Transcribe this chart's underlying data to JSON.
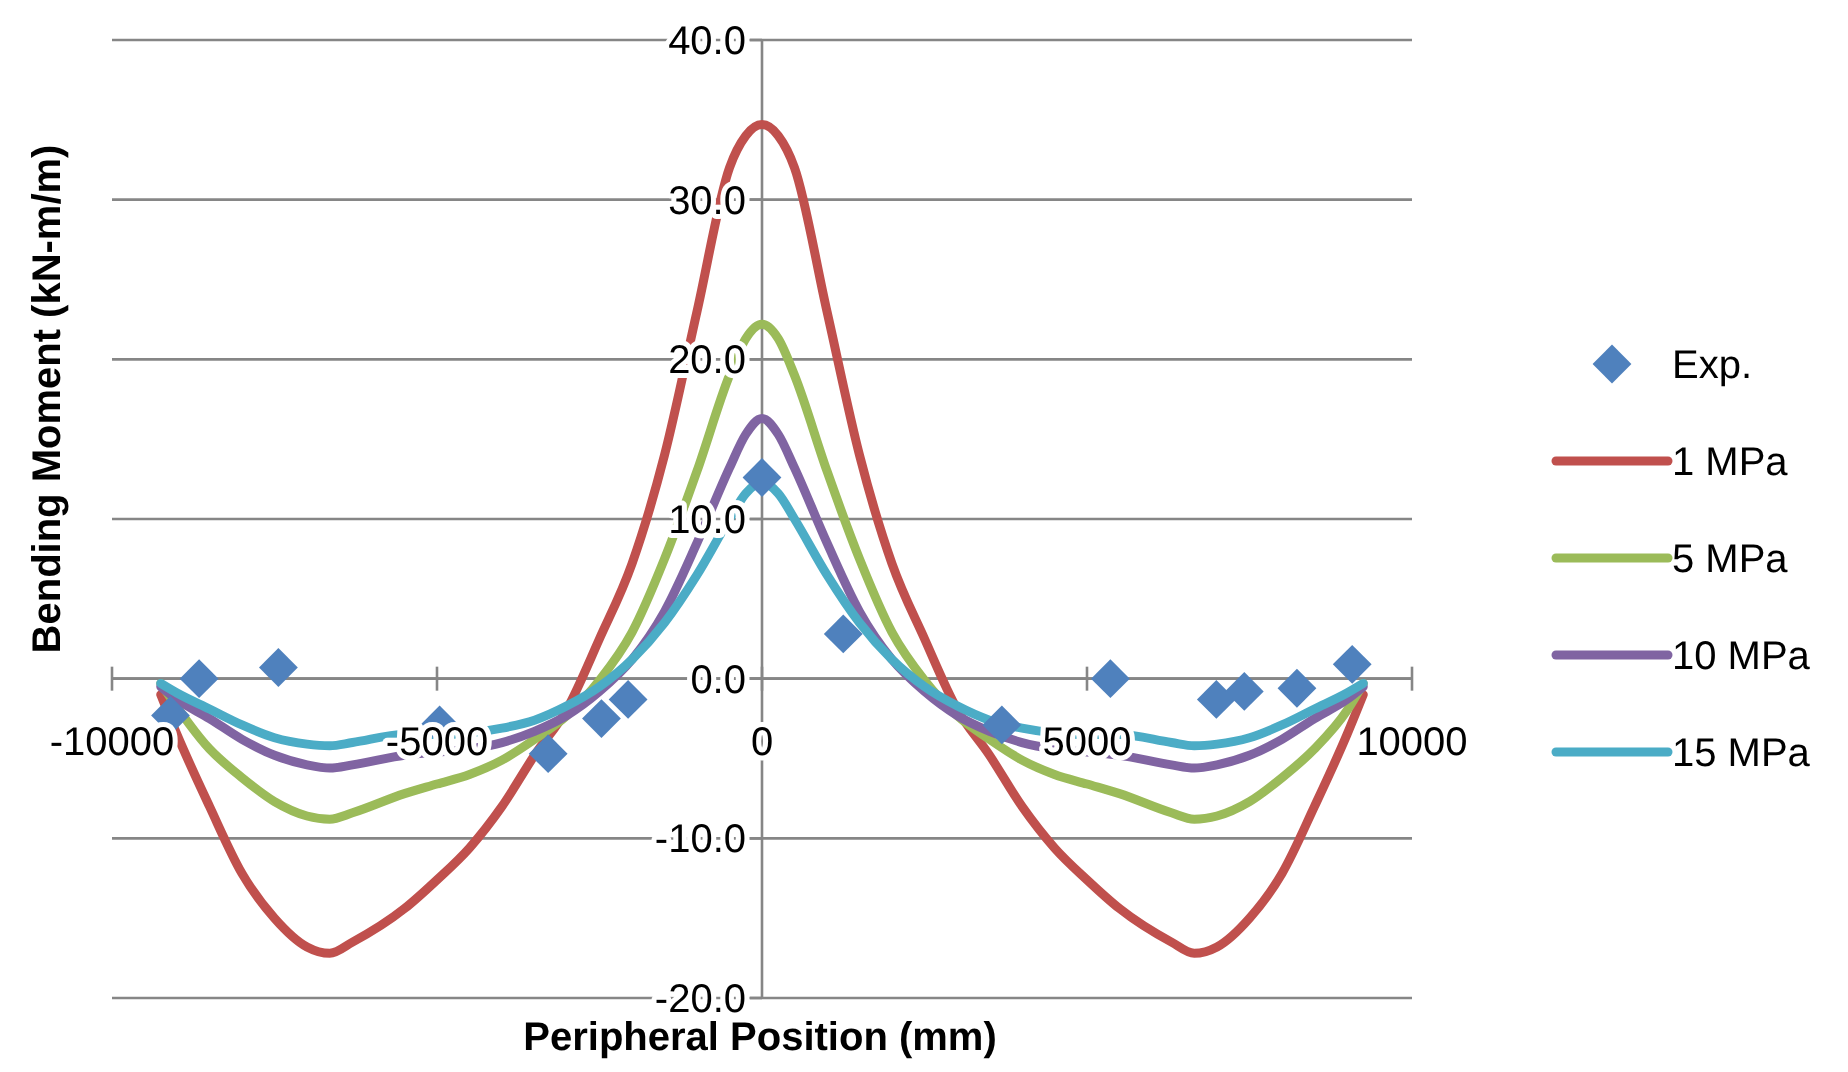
{
  "chart_data": {
    "type": "line",
    "xlabel": "Peripheral Position (mm)",
    "ylabel": "Bending Moment (kN-m/m)",
    "xlim": [
      -10000,
      10000
    ],
    "xticks": [
      -10000,
      -5000,
      0,
      5000,
      10000
    ],
    "ylim": [
      -20,
      40
    ],
    "yticks": [
      {
        "value": -20,
        "label": "-20.0"
      },
      {
        "value": -10,
        "label": "-10.0"
      },
      {
        "value": 0,
        "label": "0.0"
      },
      {
        "value": 10,
        "label": "10.0"
      },
      {
        "value": 20,
        "label": "20.0"
      },
      {
        "value": 30,
        "label": "30.0"
      },
      {
        "value": 40,
        "label": "40.0"
      }
    ],
    "grid": "y",
    "legend": "right",
    "series": [
      {
        "name": "Exp.",
        "type": "scatter",
        "marker": "diamond",
        "color": "#4f81bd",
        "x": [
          -9100,
          -8660,
          -7440,
          -4960,
          -3290,
          -2470,
          -2060,
          0,
          1250,
          3690,
          5360,
          6990,
          7420,
          8230,
          9080
        ],
        "values": [
          -2.3,
          0,
          0.7,
          -2.9,
          -4.7,
          -2.5,
          -1.3,
          12.6,
          2.8,
          -2.9,
          0,
          -1.3,
          -0.8,
          -0.6,
          0.9
        ]
      },
      {
        "name": "1 MPa",
        "marker": "none",
        "color": "#c0504d",
        "x": [
          -9250,
          -9000,
          -8500,
          -8000,
          -7500,
          -7000,
          -6650,
          -6300,
          -5500,
          -5000,
          -4500,
          -4000,
          -3500,
          -3000,
          -2500,
          -2000,
          -1500,
          -1000,
          -500,
          -250,
          0,
          250,
          500,
          1000,
          1500,
          2000,
          2500,
          3000,
          3500,
          4000,
          4500,
          5000,
          5500,
          6300,
          6650,
          7000,
          7500,
          8000,
          8500,
          9000,
          9250
        ],
        "values": [
          -1.0,
          -3.5,
          -8,
          -12.2,
          -15,
          -16.8,
          -17.2,
          -16.5,
          -14.4,
          -12.6,
          -10.6,
          -8,
          -4.8,
          -1.9,
          2.5,
          7.2,
          14,
          23,
          32,
          34,
          34.7,
          34,
          32,
          23,
          14,
          7.2,
          2.5,
          -1.9,
          -4.8,
          -8,
          -10.6,
          -12.6,
          -14.4,
          -16.5,
          -17.2,
          -16.8,
          -15,
          -12.2,
          -8,
          -3.5,
          -1.0
        ]
      },
      {
        "name": "5 MPa",
        "marker": "none",
        "color": "#9bbb59",
        "x": [
          -9250,
          -8500,
          -8000,
          -7500,
          -7000,
          -6650,
          -6300,
          -5500,
          -5000,
          -4500,
          -4000,
          -3500,
          -3000,
          -2500,
          -2000,
          -1500,
          -1000,
          -500,
          -250,
          0,
          250,
          500,
          1000,
          1500,
          2000,
          2500,
          3000,
          3500,
          4000,
          4500,
          5000,
          5500,
          6300,
          6650,
          7000,
          7500,
          8000,
          8500,
          9000,
          9250
        ],
        "values": [
          -0.3,
          -4.4,
          -6.2,
          -7.7,
          -8.6,
          -8.8,
          -8.4,
          -7.2,
          -6.6,
          -6.0,
          -5.1,
          -3.8,
          -2.3,
          -0.1,
          2.9,
          7.5,
          13,
          19,
          21.3,
          22.2,
          21.3,
          19,
          13,
          7.5,
          2.9,
          -0.1,
          -2.3,
          -3.8,
          -5.1,
          -6.0,
          -6.6,
          -7.2,
          -8.4,
          -8.8,
          -8.6,
          -7.7,
          -6.2,
          -4.4,
          -2,
          -0.3
        ]
      },
      {
        "name": "10 MPa",
        "marker": "none",
        "color": "#8064a2",
        "x": [
          -9250,
          -9000,
          -8500,
          -8000,
          -7500,
          -7000,
          -6650,
          -6300,
          -5500,
          -5000,
          -4500,
          -4000,
          -3500,
          -3000,
          -2500,
          -2000,
          -1500,
          -1000,
          -500,
          -250,
          0,
          250,
          500,
          1000,
          1500,
          2000,
          2500,
          3000,
          3500,
          4000,
          4500,
          5000,
          5500,
          6300,
          6650,
          7000,
          7500,
          8000,
          8500,
          9000,
          9250
        ],
        "values": [
          -0.5,
          -1.3,
          -2.5,
          -3.8,
          -4.8,
          -5.4,
          -5.6,
          -5.4,
          -4.8,
          -4.6,
          -4.4,
          -4.0,
          -3.3,
          -2.3,
          -0.8,
          1.2,
          4.2,
          8.5,
          13.2,
          15.3,
          16.3,
          15.3,
          13.2,
          8.5,
          4.2,
          1.2,
          -0.8,
          -2.3,
          -3.3,
          -4.0,
          -4.4,
          -4.6,
          -4.8,
          -5.4,
          -5.6,
          -5.4,
          -4.8,
          -3.8,
          -2.5,
          -1.3,
          -0.5
        ]
      },
      {
        "name": "15 MPa",
        "marker": "none",
        "color": "#4bacc6",
        "x": [
          -9250,
          -9000,
          -8500,
          -8000,
          -7500,
          -7000,
          -6650,
          -6300,
          -5500,
          -5000,
          -4500,
          -4000,
          -3500,
          -3000,
          -2500,
          -2000,
          -1500,
          -1000,
          -500,
          -250,
          0,
          250,
          500,
          1000,
          1500,
          2000,
          2500,
          3000,
          3500,
          4000,
          4500,
          5000,
          5500,
          6300,
          6650,
          7000,
          7500,
          8000,
          8500,
          9000,
          9250
        ],
        "values": [
          -0.3,
          -0.9,
          -1.9,
          -2.9,
          -3.7,
          -4.1,
          -4.2,
          -4.0,
          -3.5,
          -3.5,
          -3.4,
          -3.1,
          -2.6,
          -1.7,
          -0.5,
          1.2,
          3.5,
          6.5,
          10.0,
          11.6,
          12.3,
          11.6,
          10.0,
          6.5,
          3.5,
          1.2,
          -0.5,
          -1.7,
          -2.6,
          -3.1,
          -3.4,
          -3.5,
          -3.5,
          -4.0,
          -4.2,
          -4.1,
          -3.7,
          -2.9,
          -1.9,
          -0.9,
          -0.3
        ]
      }
    ]
  }
}
